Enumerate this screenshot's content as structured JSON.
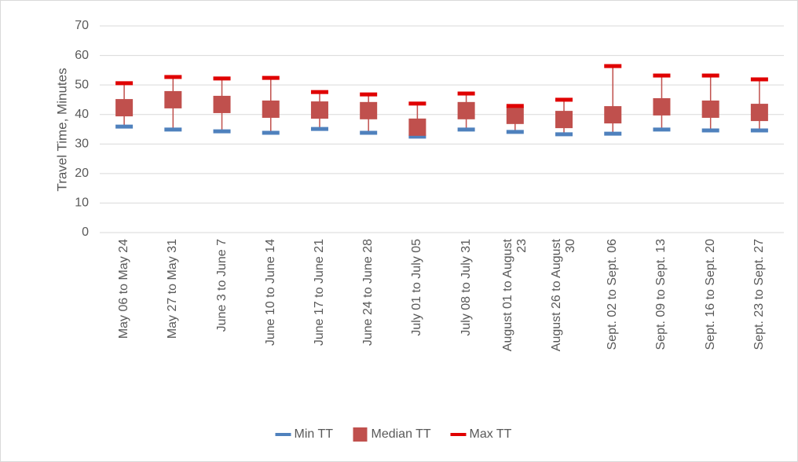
{
  "chart_data": {
    "type": "stock",
    "y_label": "Travel Time, Minutes",
    "categories": [
      "May 06 to May 24",
      "May 27 to May 31",
      "June 3 to June 7",
      "June 10 to June 14",
      "June 17 to June 21",
      "June 24 to June 28",
      "July 01 to July 05",
      "July 08 to July 31",
      "August 01 to August 23",
      "August 26 to August 30",
      "Sept. 02 to Sept. 06",
      "Sept. 09 to Sept. 13",
      "Sept. 16 to Sept. 20",
      "Sept. 23 to Sept. 27"
    ],
    "series": [
      {
        "name": "Min TT",
        "color": "#4f81bd",
        "marker": "dash",
        "values": [
          35.9,
          34.9,
          34.3,
          33.8,
          35.1,
          33.8,
          32.5,
          34.9,
          34.1,
          33.3,
          33.5,
          34.9,
          34.6,
          34.6
        ]
      },
      {
        "name": "Median TT",
        "color": "#c0504d",
        "marker": "square",
        "values": [
          42.3,
          45,
          43.4,
          41.8,
          41.5,
          41.3,
          35.7,
          41.3,
          39.7,
          38.3,
          39.9,
          42.6,
          41.8,
          40.7
        ]
      },
      {
        "name": "Max TT",
        "color": "#e00000",
        "marker": "dash",
        "values": [
          50.6,
          52.7,
          52.2,
          52.4,
          47.6,
          46.8,
          43.7,
          47.1,
          42.9,
          45,
          56.4,
          53.2,
          53.2,
          51.9
        ]
      }
    ],
    "high_low_color": "#c0504d",
    "ylim": [
      0,
      70
    ],
    "yticks": [
      0,
      10,
      20,
      30,
      40,
      50,
      60,
      70
    ],
    "grid": true,
    "legend": "bottom"
  }
}
